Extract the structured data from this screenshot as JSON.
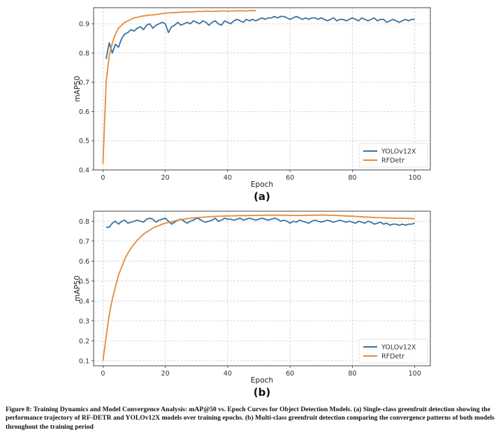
{
  "caption": {
    "label": "Figure 8:",
    "text": "Training Dynamics and Model Convergence Analysis: mAP@50 vs. Epoch Curves for Object Detection Models. (a) Single-class greenfruit detection showing the performance trajectory of RF-DETR and YOLOv12X models over training epochs. (b) Multi-class greenfruit detection comparing the convergence patterns of both models throughout the training period"
  },
  "colors": {
    "yolo": "#3a72a0",
    "rfdetr": "#e58a3a",
    "grid": "#cfcfcf",
    "axes": "#333333"
  },
  "chart_data": [
    {
      "type": "line",
      "panel_label": "(a)",
      "xlabel": "Epoch",
      "ylabel": "mAP50",
      "xlim": [
        -3,
        105
      ],
      "ylim": [
        0.4,
        0.955
      ],
      "xticks": [
        0,
        20,
        40,
        60,
        80,
        100
      ],
      "yticks": [
        0.4,
        0.5,
        0.6,
        0.7,
        0.8,
        0.9
      ],
      "ytick_labels": [
        "0.4",
        "0.5",
        "0.6",
        "0.7",
        "0.8",
        "0.9"
      ],
      "grid": true,
      "legend_position": "lower-right",
      "series": [
        {
          "name": "YOLOv12X",
          "color": "#3a72a0",
          "x": [
            1,
            2,
            3,
            4,
            5,
            6,
            7,
            8,
            9,
            10,
            11,
            12,
            13,
            14,
            15,
            16,
            17,
            18,
            19,
            20,
            21,
            22,
            23,
            24,
            25,
            26,
            27,
            28,
            29,
            30,
            31,
            32,
            33,
            34,
            35,
            36,
            37,
            38,
            39,
            40,
            41,
            42,
            43,
            44,
            45,
            46,
            47,
            48,
            49,
            50,
            51,
            52,
            53,
            54,
            55,
            56,
            57,
            58,
            59,
            60,
            61,
            62,
            63,
            64,
            65,
            66,
            67,
            68,
            69,
            70,
            71,
            72,
            73,
            74,
            75,
            76,
            77,
            78,
            79,
            80,
            81,
            82,
            83,
            84,
            85,
            86,
            87,
            88,
            89,
            90,
            91,
            92,
            93,
            94,
            95,
            96,
            97,
            98,
            99,
            100
          ],
          "y": [
            0.78,
            0.835,
            0.8,
            0.83,
            0.82,
            0.85,
            0.865,
            0.87,
            0.88,
            0.875,
            0.885,
            0.89,
            0.88,
            0.895,
            0.9,
            0.885,
            0.895,
            0.9,
            0.905,
            0.9,
            0.87,
            0.89,
            0.895,
            0.905,
            0.895,
            0.9,
            0.905,
            0.9,
            0.91,
            0.905,
            0.9,
            0.91,
            0.905,
            0.895,
            0.905,
            0.91,
            0.9,
            0.895,
            0.91,
            0.905,
            0.9,
            0.91,
            0.915,
            0.91,
            0.905,
            0.915,
            0.91,
            0.915,
            0.91,
            0.915,
            0.92,
            0.915,
            0.92,
            0.92,
            0.925,
            0.92,
            0.925,
            0.925,
            0.92,
            0.915,
            0.92,
            0.925,
            0.92,
            0.915,
            0.92,
            0.915,
            0.92,
            0.92,
            0.915,
            0.92,
            0.915,
            0.91,
            0.915,
            0.92,
            0.91,
            0.915,
            0.915,
            0.91,
            0.915,
            0.92,
            0.915,
            0.91,
            0.92,
            0.915,
            0.91,
            0.915,
            0.92,
            0.91,
            0.915,
            0.915,
            0.905,
            0.91,
            0.915,
            0.91,
            0.905,
            0.91,
            0.915,
            0.91,
            0.915,
            0.915
          ]
        },
        {
          "name": "RFDetr",
          "color": "#e58a3a",
          "x": [
            0,
            1,
            2,
            3,
            4,
            5,
            6,
            7,
            8,
            9,
            10,
            11,
            12,
            13,
            14,
            15,
            16,
            17,
            18,
            19,
            20,
            21,
            22,
            23,
            24,
            25,
            26,
            27,
            28,
            29,
            30,
            31,
            32,
            33,
            34,
            35,
            36,
            37,
            38,
            39,
            40,
            41,
            42,
            43,
            44,
            45,
            46,
            47,
            48,
            49
          ],
          "y": [
            0.42,
            0.7,
            0.79,
            0.835,
            0.865,
            0.885,
            0.895,
            0.905,
            0.91,
            0.915,
            0.92,
            0.922,
            0.925,
            0.927,
            0.928,
            0.93,
            0.93,
            0.932,
            0.933,
            0.935,
            0.936,
            0.937,
            0.938,
            0.938,
            0.939,
            0.94,
            0.94,
            0.941,
            0.94,
            0.941,
            0.942,
            0.942,
            0.942,
            0.943,
            0.943,
            0.942,
            0.943,
            0.943,
            0.944,
            0.944,
            0.943,
            0.944,
            0.944,
            0.944,
            0.945,
            0.944,
            0.944,
            0.945,
            0.945,
            0.945
          ]
        }
      ]
    },
    {
      "type": "line",
      "panel_label": "(b)",
      "xlabel": "Epoch",
      "ylabel": "mAP50",
      "xlim": [
        -3,
        105
      ],
      "ylim": [
        0.075,
        0.85
      ],
      "xticks": [
        0,
        20,
        40,
        60,
        80,
        100
      ],
      "yticks": [
        0.1,
        0.2,
        0.3,
        0.4,
        0.5,
        0.6,
        0.7,
        0.8
      ],
      "ytick_labels": [
        "0.1",
        "0.2",
        "0.3",
        "0.4",
        "0.5",
        "0.6",
        "0.7",
        "0.8"
      ],
      "grid": true,
      "legend_position": "lower-right",
      "series": [
        {
          "name": "YOLOv12X",
          "color": "#3a72a0",
          "x": [
            1,
            2,
            3,
            4,
            5,
            6,
            7,
            8,
            9,
            10,
            11,
            12,
            13,
            14,
            15,
            16,
            17,
            18,
            19,
            20,
            21,
            22,
            23,
            24,
            25,
            26,
            27,
            28,
            29,
            30,
            31,
            32,
            33,
            34,
            35,
            36,
            37,
            38,
            39,
            40,
            41,
            42,
            43,
            44,
            45,
            46,
            47,
            48,
            49,
            50,
            51,
            52,
            53,
            54,
            55,
            56,
            57,
            58,
            59,
            60,
            61,
            62,
            63,
            64,
            65,
            66,
            67,
            68,
            69,
            70,
            71,
            72,
            73,
            74,
            75,
            76,
            77,
            78,
            79,
            80,
            81,
            82,
            83,
            84,
            85,
            86,
            87,
            88,
            89,
            90,
            91,
            92,
            93,
            94,
            95,
            96,
            97,
            98,
            99,
            100
          ],
          "y": [
            0.77,
            0.77,
            0.79,
            0.8,
            0.785,
            0.8,
            0.805,
            0.79,
            0.795,
            0.8,
            0.805,
            0.8,
            0.795,
            0.81,
            0.815,
            0.81,
            0.795,
            0.805,
            0.81,
            0.815,
            0.8,
            0.785,
            0.795,
            0.805,
            0.81,
            0.8,
            0.79,
            0.8,
            0.805,
            0.815,
            0.81,
            0.8,
            0.795,
            0.8,
            0.805,
            0.815,
            0.8,
            0.805,
            0.815,
            0.81,
            0.81,
            0.805,
            0.81,
            0.815,
            0.805,
            0.81,
            0.815,
            0.81,
            0.805,
            0.81,
            0.815,
            0.81,
            0.805,
            0.81,
            0.815,
            0.81,
            0.8,
            0.805,
            0.8,
            0.79,
            0.8,
            0.795,
            0.805,
            0.8,
            0.795,
            0.79,
            0.8,
            0.805,
            0.8,
            0.795,
            0.8,
            0.805,
            0.8,
            0.795,
            0.8,
            0.805,
            0.8,
            0.795,
            0.8,
            0.795,
            0.79,
            0.8,
            0.795,
            0.79,
            0.8,
            0.795,
            0.785,
            0.79,
            0.795,
            0.785,
            0.79,
            0.78,
            0.785,
            0.785,
            0.78,
            0.785,
            0.78,
            0.785,
            0.785,
            0.79
          ]
        },
        {
          "name": "RFDetr",
          "color": "#e58a3a",
          "x": [
            0,
            1,
            2,
            3,
            4,
            5,
            6,
            7,
            8,
            9,
            10,
            11,
            12,
            13,
            14,
            15,
            16,
            17,
            18,
            19,
            20,
            22,
            24,
            26,
            28,
            30,
            32,
            34,
            36,
            38,
            40,
            42,
            44,
            46,
            48,
            50,
            52,
            54,
            56,
            58,
            60,
            62,
            64,
            66,
            68,
            70,
            72,
            74,
            76,
            78,
            80,
            82,
            84,
            86,
            88,
            90,
            92,
            94,
            96,
            98,
            100
          ],
          "y": [
            0.1,
            0.22,
            0.33,
            0.41,
            0.47,
            0.53,
            0.57,
            0.61,
            0.64,
            0.665,
            0.685,
            0.705,
            0.72,
            0.735,
            0.745,
            0.755,
            0.765,
            0.772,
            0.778,
            0.785,
            0.79,
            0.797,
            0.805,
            0.81,
            0.815,
            0.818,
            0.82,
            0.822,
            0.824,
            0.825,
            0.826,
            0.827,
            0.828,
            0.828,
            0.829,
            0.829,
            0.83,
            0.83,
            0.83,
            0.83,
            0.829,
            0.829,
            0.829,
            0.83,
            0.83,
            0.831,
            0.83,
            0.829,
            0.828,
            0.826,
            0.825,
            0.823,
            0.821,
            0.82,
            0.818,
            0.817,
            0.816,
            0.815,
            0.815,
            0.814,
            0.813
          ]
        }
      ]
    }
  ]
}
